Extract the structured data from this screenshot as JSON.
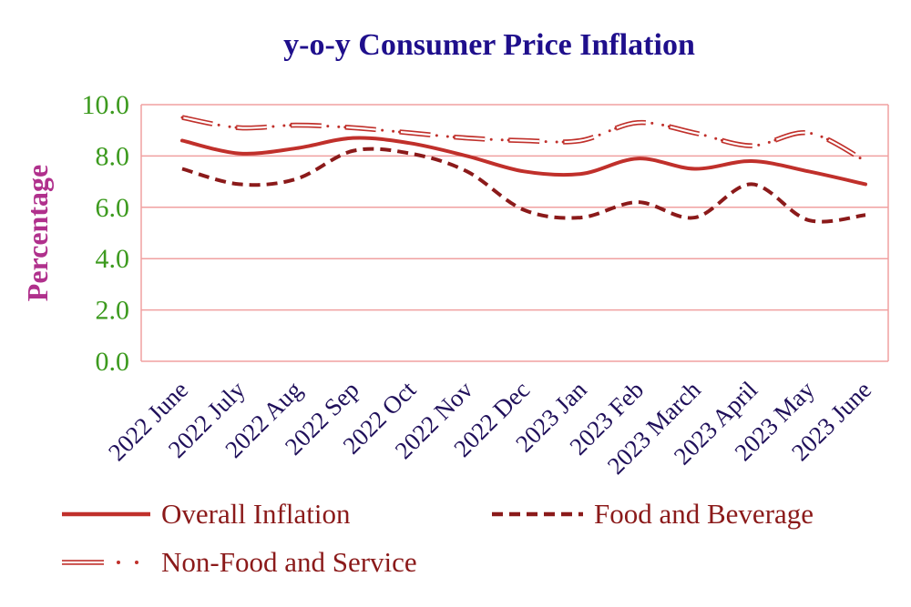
{
  "chart_data": {
    "type": "line",
    "title": "y-o-y Consumer Price Inflation",
    "xlabel": "",
    "ylabel": "Percentage",
    "ylim": [
      0,
      10
    ],
    "yticks": [
      "0.0",
      "2.0",
      "4.0",
      "6.0",
      "8.0",
      "10.0"
    ],
    "grid": true,
    "legend_position": "bottom",
    "categories": [
      "2022 June",
      "2022 July",
      "2022 Aug",
      "2022 Sep",
      "2022 Oct",
      "2022 Nov",
      "2022 Dec",
      "2023 Jan",
      "2023 Feb",
      "2023 March",
      "2023 April",
      "2023 May",
      "2023 June"
    ],
    "series": [
      {
        "name": "Overall Inflation",
        "style": "solid",
        "color": "#c0302b",
        "values": [
          8.6,
          8.1,
          8.3,
          8.7,
          8.5,
          8.0,
          7.4,
          7.3,
          7.9,
          7.5,
          7.8,
          7.4,
          6.9
        ]
      },
      {
        "name": "Food and Beverage",
        "style": "dashed",
        "color": "#8b1a1a",
        "values": [
          7.5,
          6.9,
          7.1,
          8.2,
          8.1,
          7.4,
          5.9,
          5.6,
          6.2,
          5.6,
          6.9,
          5.5,
          5.7
        ]
      },
      {
        "name": "Non-Food and Service",
        "style": "double-dotted",
        "color": "#c0302b",
        "values": [
          9.5,
          9.1,
          9.2,
          9.1,
          8.9,
          8.7,
          8.6,
          8.6,
          9.3,
          8.9,
          8.4,
          8.9,
          7.8
        ]
      }
    ]
  }
}
